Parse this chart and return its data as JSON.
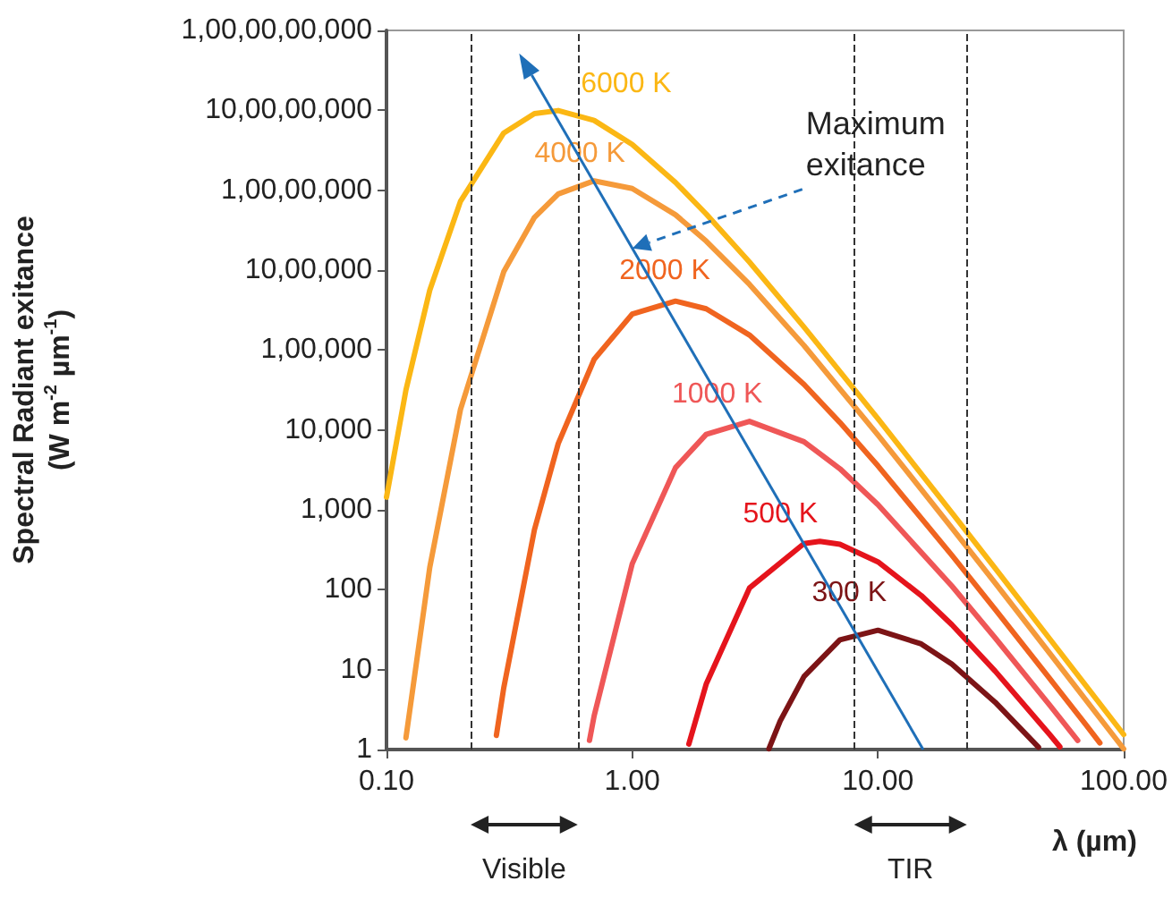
{
  "chart_data": {
    "type": "line",
    "ylabel": "Spectral Radiant exitance (W m$^{-2}$ µm$^{-1}$)",
    "xlabel": "λ (µm)",
    "log": "xy",
    "xlim": [
      0.1,
      100
    ],
    "ylim": [
      1,
      1000000000
    ],
    "xticks": [
      {
        "value": 0.1,
        "label": "0.10"
      },
      {
        "value": 1,
        "label": "1.00"
      },
      {
        "value": 10,
        "label": "10.00"
      },
      {
        "value": 100,
        "label": "100.00"
      }
    ],
    "yticks": [
      1,
      10,
      100,
      {
        "value": 1000,
        "label": "1,000"
      },
      {
        "value": 10000,
        "label": "10,000"
      },
      {
        "value": 100000,
        "label": "1,00,000"
      },
      {
        "value": 1000000,
        "label": "10,00,000"
      },
      {
        "value": 10000000,
        "label": "1,00,00,000"
      },
      {
        "value": 100000000,
        "label": "10,00,00,000"
      },
      {
        "value": 1000000000,
        "label": "1,00,00,00,000"
      }
    ],
    "legend": false,
    "marker": "none",
    "line_style": "solid",
    "series": [
      {
        "name": "6000 K",
        "color": "#fbb714",
        "x": [
          0.1,
          0.12,
          0.15,
          0.2,
          0.3,
          0.4,
          0.5,
          0.7,
          1,
          1.5,
          2,
          3,
          5,
          10,
          20,
          30,
          50,
          100
        ],
        "values": [
          1440,
          31600,
          560000,
          7250000,
          52000000,
          91000000,
          99300000,
          74800000,
          37400000,
          12500000,
          5040000,
          1260000,
          194000,
          13800,
          917,
          185,
          24.3,
          1.54
        ]
      },
      {
        "name": "4000 K",
        "color": "#f59a3a",
        "x": [
          0.12,
          0.15,
          0.2,
          0.3,
          0.4,
          0.5,
          0.7,
          1,
          1.5,
          2,
          3,
          5,
          10,
          20,
          30,
          50,
          100
        ],
        "values": [
          1.4,
          190,
          18000,
          955000,
          4570000,
          8980000,
          13100000,
          10500000,
          4930000,
          2310000,
          664000,
          114000,
          8640,
          593,
          121,
          16,
          1.02
        ]
      },
      {
        "name": "2000 K",
        "color": "#f0641f",
        "x": [
          0.28,
          0.3,
          0.4,
          0.5,
          0.7,
          1,
          1.5,
          2,
          3,
          5,
          7,
          10,
          20,
          30,
          50,
          70,
          80
        ],
        "values": [
          1.5,
          5.9,
          563,
          6750,
          76400,
          282000,
          409000,
          328000,
          154000,
          37200,
          12400,
          3550,
          270,
          56.8,
          7.72,
          2.06,
          1.21
        ]
      },
      {
        "name": "1000 K",
        "color": "#ef5757",
        "x": [
          0.67,
          0.7,
          1,
          1.5,
          2,
          3,
          5,
          7,
          10,
          20,
          30,
          50,
          65
        ],
        "values": [
          1.3,
          2.65,
          211,
          3370,
          8800,
          12800,
          7120,
          3270,
          1160,
          111,
          24.9,
          3.59,
          1.3
        ]
      },
      {
        "name": "500 K",
        "color": "#e5141c",
        "x": [
          1.7,
          2,
          3,
          5,
          5.8,
          7,
          10,
          15,
          20,
          30,
          50,
          55
        ],
        "values": [
          1.17,
          6.59,
          105,
          378,
          403,
          371,
          223,
          84.7,
          36.4,
          9.56,
          1.54,
          1.08
        ]
      },
      {
        "name": "300 K",
        "color": "#7c1416",
        "x": [
          3.6,
          4,
          5,
          7,
          10,
          15,
          20,
          30,
          45
        ],
        "values": [
          1.02,
          2.27,
          8.19,
          23.6,
          31.1,
          21,
          11.7,
          3.9,
          1.07
        ]
      }
    ],
    "ref_lines": [
      {
        "axis": "x",
        "value": 0.22,
        "color": "#333333",
        "line_style": "dashed"
      },
      {
        "axis": "x",
        "value": 0.6,
        "color": "#333333",
        "line_style": "dashed"
      },
      {
        "axis": "x",
        "value": 8,
        "color": "#333333",
        "line_style": "dashed"
      },
      {
        "axis": "x",
        "value": 23,
        "color": "#333333",
        "line_style": "dashed"
      }
    ],
    "annotations": [
      "Visible",
      "TIR",
      "Maximum exitance"
    ]
  }
}
